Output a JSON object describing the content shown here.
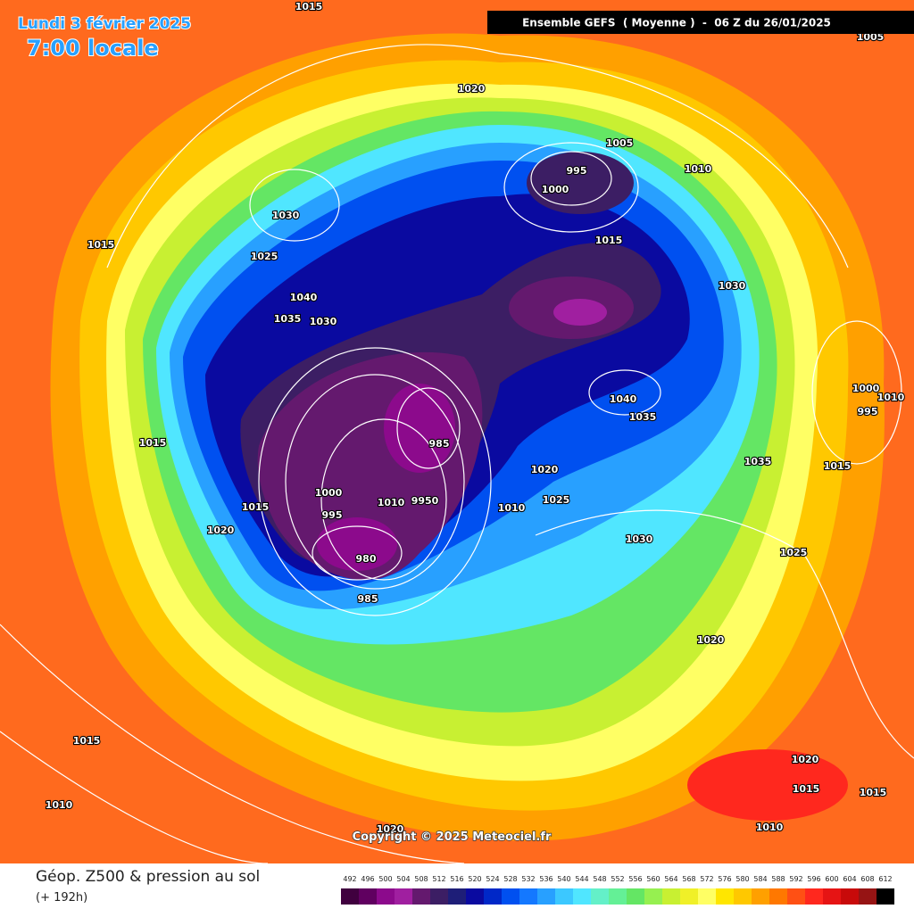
{
  "header": {
    "date": "Lundi 3 février 2025",
    "time": "7:00 locale",
    "model": "Ensemble GEFS  ( Moyenne )  -  06 Z du 26/01/2025"
  },
  "copyright": "Copyright © 2025 Meteociel.fr",
  "footer": {
    "title": "Géop. Z500 & pression au sol",
    "lead": "(+ 192h)"
  },
  "legend": {
    "values": [
      492,
      496,
      500,
      504,
      508,
      512,
      516,
      520,
      524,
      528,
      532,
      536,
      540,
      544,
      548,
      552,
      556,
      560,
      564,
      568,
      572,
      576,
      580,
      584,
      588,
      592,
      596,
      600,
      604,
      608,
      612
    ],
    "colors": [
      "#40003f",
      "#600060",
      "#8c0a8c",
      "#a01fa0",
      "#64196e",
      "#3c1e64",
      "#1e1e78",
      "#0a0aa0",
      "#0028c8",
      "#0050f0",
      "#1478ff",
      "#28a0ff",
      "#3cc8ff",
      "#50e6ff",
      "#64f0c8",
      "#64f096",
      "#64e664",
      "#96f050",
      "#c8f032",
      "#f0f028",
      "#ffff64",
      "#ffe600",
      "#ffc800",
      "#ffa000",
      "#ff7800",
      "#ff5014",
      "#ff281e",
      "#e61414",
      "#c80a0a",
      "#961414",
      "#000000"
    ]
  },
  "isobar_labels": [
    "1015",
    "1005",
    "1020",
    "1005",
    "995",
    "1010",
    "1000",
    "1030",
    "1015",
    "1015",
    "1025",
    "1030",
    "1040",
    "1035",
    "1030",
    "1000",
    "1010",
    "1040",
    "995",
    "1035",
    "1015",
    "985",
    "1035",
    "1015",
    "1020",
    "1000",
    "1010",
    "9950",
    "1025",
    "1010",
    "1015",
    "995",
    "1020",
    "1030",
    "1025",
    "980",
    "985",
    "1020",
    "1015",
    "1020",
    "1015",
    "1015",
    "1010",
    "1010",
    "1020"
  ]
}
